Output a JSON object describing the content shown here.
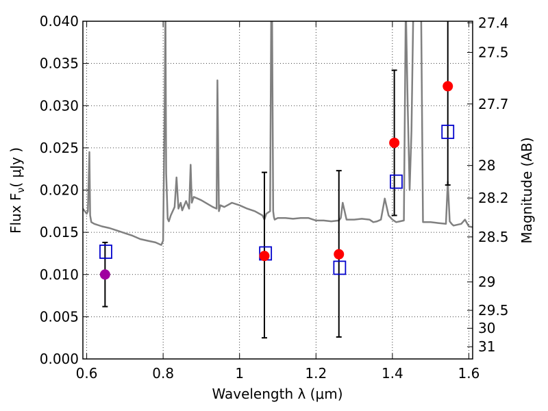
{
  "chart_data": {
    "type": "scatter",
    "title": "",
    "xlabel": "Wavelength  λ (μm)",
    "ylabel": "Flux  F",
    "ylabel_sub": "ν",
    "ylabel_unit": "( μJy )",
    "y2label": "Magnitude (AB)",
    "xlim": [
      0.59,
      1.61
    ],
    "ylim": [
      0.0,
      0.04
    ],
    "grid": true,
    "grid_style": "dotted",
    "x_ticks": [
      {
        "value": 0.6,
        "label": "0.6"
      },
      {
        "value": 0.8,
        "label": "0.8"
      },
      {
        "value": 1.0,
        "label": "1"
      },
      {
        "value": 1.2,
        "label": "1.2"
      },
      {
        "value": 1.4,
        "label": "1.4"
      },
      {
        "value": 1.6,
        "label": "1.6"
      }
    ],
    "y_ticks": [
      {
        "value": 0.0,
        "label": "0.000"
      },
      {
        "value": 0.005,
        "label": "0.005"
      },
      {
        "value": 0.01,
        "label": "0.010"
      },
      {
        "value": 0.015,
        "label": "0.015"
      },
      {
        "value": 0.02,
        "label": "0.020"
      },
      {
        "value": 0.025,
        "label": "0.025"
      },
      {
        "value": 0.03,
        "label": "0.030"
      },
      {
        "value": 0.035,
        "label": "0.035"
      },
      {
        "value": 0.04,
        "label": "0.040"
      }
    ],
    "y2_ticks": [
      {
        "value": 27.4,
        "label": "27.4"
      },
      {
        "value": 27.5,
        "label": "27.5"
      },
      {
        "value": 27.7,
        "label": "27.7"
      },
      {
        "value": 28.0,
        "label": "28"
      },
      {
        "value": 28.2,
        "label": "28.2"
      },
      {
        "value": 28.5,
        "label": "28.5"
      },
      {
        "value": 29.0,
        "label": "29"
      },
      {
        "value": 29.5,
        "label": "29.5"
      },
      {
        "value": 30.0,
        "label": "30"
      },
      {
        "value": 31.0,
        "label": "31"
      }
    ],
    "colors": {
      "spectrum": "#808080",
      "observed_red": "#ff0000",
      "observed_purple": "#a000a0",
      "model_box": "#0000cc",
      "errorbar": "#000000"
    },
    "series": [
      {
        "kind": "model_spectrum",
        "x": [
          0.59,
          0.6,
          0.603,
          0.607,
          0.609,
          0.612,
          0.62,
          0.64,
          0.66,
          0.68,
          0.7,
          0.72,
          0.74,
          0.76,
          0.78,
          0.795,
          0.8,
          0.804,
          0.806,
          0.808,
          0.812,
          0.815,
          0.82,
          0.83,
          0.835,
          0.84,
          0.846,
          0.85,
          0.86,
          0.868,
          0.872,
          0.875,
          0.88,
          0.89,
          0.9,
          0.93,
          0.94,
          0.942,
          0.946,
          0.95,
          0.96,
          0.98,
          1.0,
          1.02,
          1.04,
          1.06,
          1.065,
          1.07,
          1.08,
          1.083,
          1.085,
          1.088,
          1.09,
          1.092,
          1.1,
          1.12,
          1.14,
          1.16,
          1.18,
          1.2,
          1.22,
          1.24,
          1.26,
          1.265,
          1.27,
          1.28,
          1.3,
          1.32,
          1.34,
          1.35,
          1.36,
          1.37,
          1.38,
          1.39,
          1.4,
          1.41,
          1.42,
          1.43,
          1.435,
          1.44,
          1.445,
          1.45,
          1.455,
          1.46,
          1.47,
          1.475,
          1.48,
          1.5,
          1.52,
          1.54,
          1.545,
          1.55,
          1.555,
          1.56,
          1.58,
          1.59,
          1.6,
          1.61
        ],
        "y": [
          0.0178,
          0.0172,
          0.0175,
          0.0245,
          0.017,
          0.0162,
          0.016,
          0.0157,
          0.0155,
          0.0152,
          0.0149,
          0.0146,
          0.0142,
          0.014,
          0.0138,
          0.0135,
          0.014,
          0.03,
          0.042,
          0.022,
          0.0166,
          0.0163,
          0.017,
          0.018,
          0.0215,
          0.0178,
          0.0185,
          0.0176,
          0.0187,
          0.0178,
          0.023,
          0.0185,
          0.0192,
          0.019,
          0.0188,
          0.018,
          0.0178,
          0.033,
          0.0175,
          0.0182,
          0.018,
          0.0185,
          0.0182,
          0.0178,
          0.0175,
          0.017,
          0.0165,
          0.0172,
          0.0175,
          0.042,
          0.042,
          0.0175,
          0.0168,
          0.0165,
          0.0167,
          0.0167,
          0.0166,
          0.0167,
          0.0167,
          0.0164,
          0.0164,
          0.0163,
          0.0164,
          0.0167,
          0.0185,
          0.0165,
          0.0165,
          0.0166,
          0.0165,
          0.0162,
          0.0163,
          0.0165,
          0.019,
          0.017,
          0.0165,
          0.0162,
          0.0163,
          0.0164,
          0.042,
          0.03,
          0.02,
          0.027,
          0.042,
          0.042,
          0.042,
          0.042,
          0.0162,
          0.0162,
          0.0161,
          0.016,
          0.021,
          0.0163,
          0.016,
          0.0158,
          0.016,
          0.0165,
          0.0157,
          0.0156
        ]
      },
      {
        "kind": "observed",
        "points": [
          {
            "x": 0.648,
            "y": 0.01,
            "yerr_low": 0.0062,
            "yerr_high": 0.0138,
            "color": "purple"
          },
          {
            "x": 1.065,
            "y": 0.0122,
            "yerr_low": 0.0025,
            "yerr_high": 0.0221,
            "color": "red"
          },
          {
            "x": 1.26,
            "y": 0.0124,
            "yerr_low": 0.0026,
            "yerr_high": 0.0223,
            "color": "red"
          },
          {
            "x": 1.405,
            "y": 0.0256,
            "yerr_low": 0.017,
            "yerr_high": 0.0342,
            "color": "red"
          },
          {
            "x": 1.545,
            "y": 0.0323,
            "yerr_low": 0.0206,
            "yerr_high": 0.044,
            "color": "red"
          }
        ]
      },
      {
        "kind": "model_photometry",
        "points": [
          {
            "x": 0.65,
            "y": 0.0127
          },
          {
            "x": 1.068,
            "y": 0.0125
          },
          {
            "x": 1.262,
            "y": 0.0108
          },
          {
            "x": 1.41,
            "y": 0.021
          },
          {
            "x": 1.545,
            "y": 0.0269
          }
        ]
      }
    ]
  }
}
